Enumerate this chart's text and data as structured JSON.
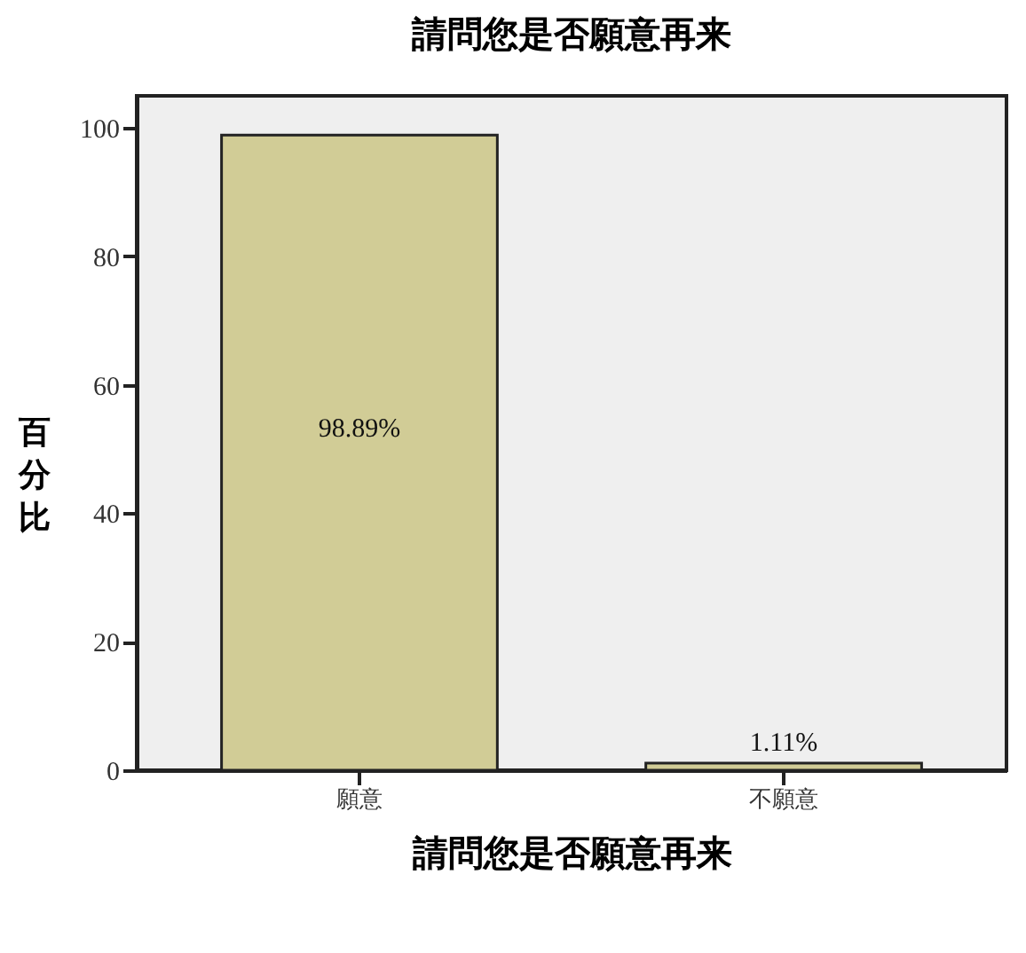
{
  "chart_data": {
    "type": "bar",
    "title": "請問您是否願意再来",
    "xlabel": "請問您是否願意再来",
    "ylabel": "百分比",
    "categories": [
      "願意",
      "不願意"
    ],
    "values": [
      98.89,
      1.11
    ],
    "value_labels": [
      "98.89%",
      "1.11%"
    ],
    "color": "#d1cc96",
    "ylim": [
      0,
      105
    ],
    "yticks": [
      0,
      20,
      40,
      60,
      80,
      100
    ],
    "grid": false
  }
}
